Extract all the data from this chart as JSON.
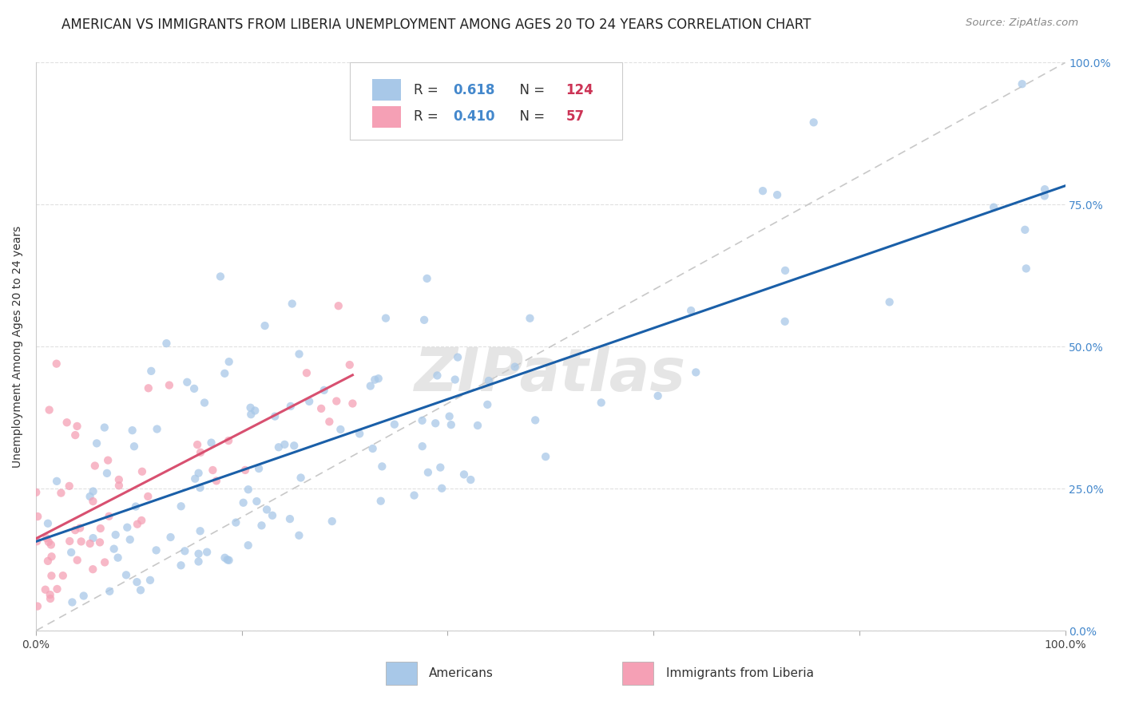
{
  "title": "AMERICAN VS IMMIGRANTS FROM LIBERIA UNEMPLOYMENT AMONG AGES 20 TO 24 YEARS CORRELATION CHART",
  "source": "Source: ZipAtlas.com",
  "ylabel": "Unemployment Among Ages 20 to 24 years",
  "legend_label1": "Americans",
  "legend_label2": "Immigrants from Liberia",
  "R1": 0.618,
  "N1": 124,
  "R2": 0.41,
  "N2": 57,
  "color_american": "#a8c8e8",
  "color_liberia": "#f5a0b5",
  "color_line_american": "#1a5fa8",
  "color_line_liberia": "#d85070",
  "color_diagonal": "#c8c8c8",
  "watermark": "ZIPatlas",
  "watermark_color": "#d0d0d0",
  "seed": 42,
  "background_color": "#ffffff",
  "title_fontsize": 12,
  "axis_label_fontsize": 10,
  "tick_fontsize": 10,
  "legend_fontsize": 12,
  "right_tick_color": "#4488cc",
  "R_color": "#4488cc",
  "N_color": "#cc3355"
}
